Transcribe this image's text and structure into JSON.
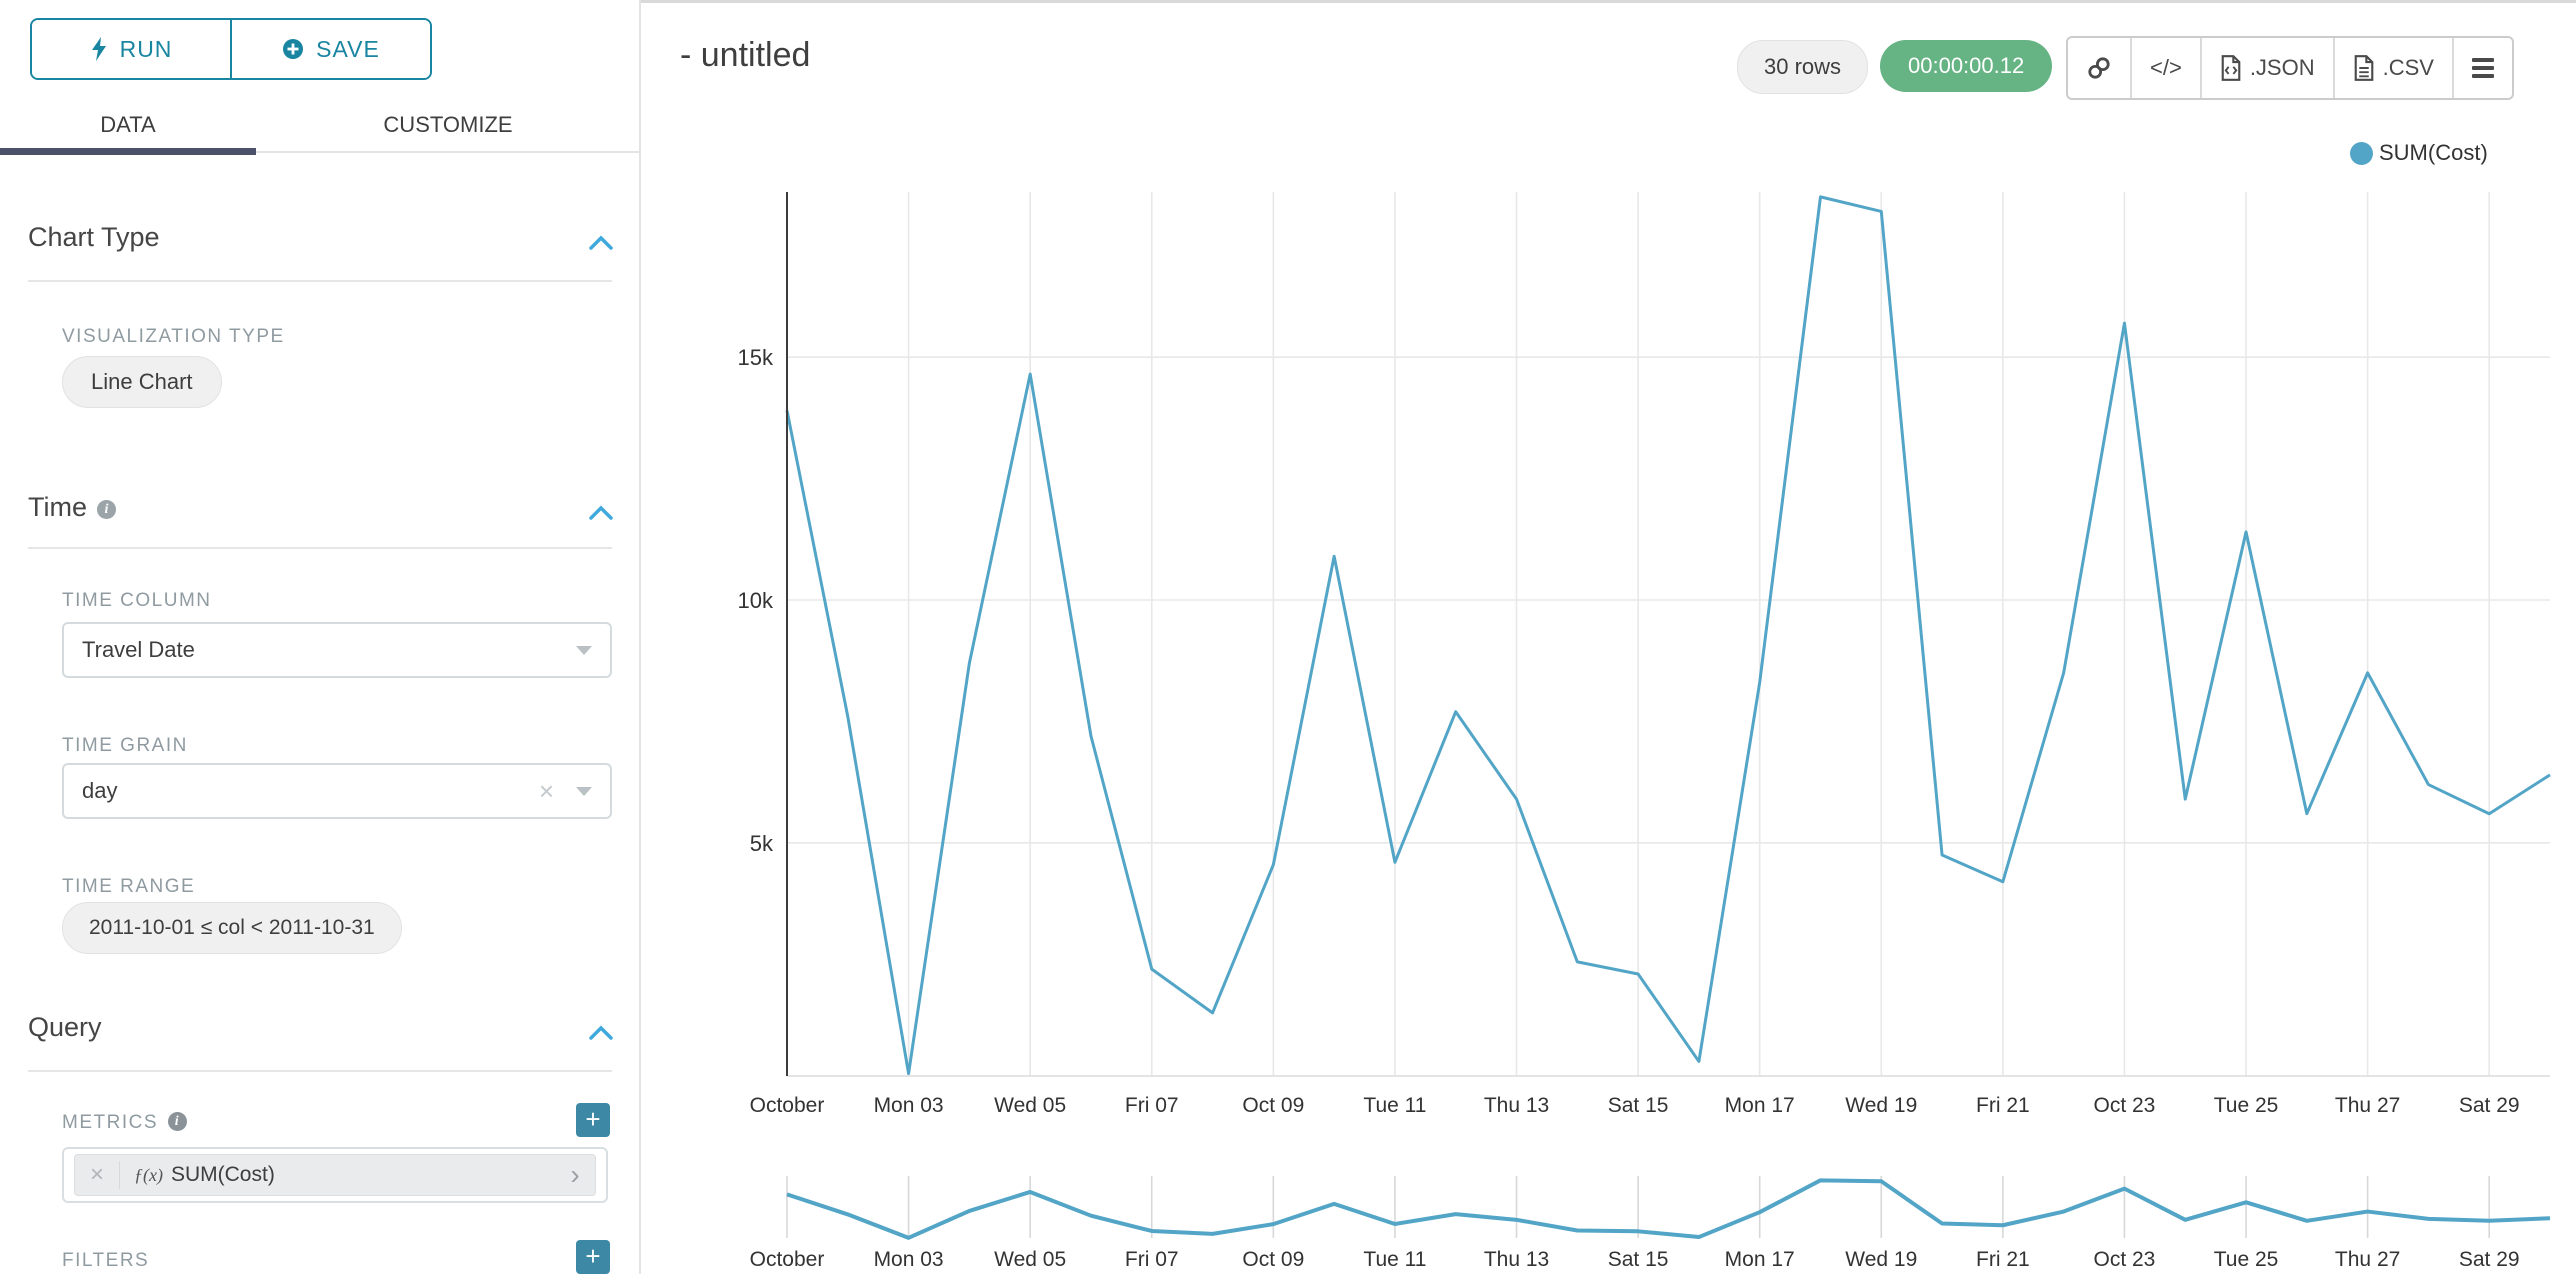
{
  "toolbar": {
    "run_label": "RUN",
    "save_label": "SAVE"
  },
  "tabs": {
    "data": "DATA",
    "customize": "CUSTOMIZE"
  },
  "sidebar": {
    "chart_type": {
      "title": "Chart Type",
      "viz_type_label": "VISUALIZATION TYPE",
      "viz_type_value": "Line Chart"
    },
    "time": {
      "title": "Time",
      "time_column_label": "TIME COLUMN",
      "time_column_value": "Travel Date",
      "time_grain_label": "TIME GRAIN",
      "time_grain_value": "day",
      "time_range_label": "TIME RANGE",
      "time_range_value": "2011-10-01 ≤ col < 2011-10-31"
    },
    "query": {
      "title": "Query",
      "metrics_label": "METRICS",
      "metric_fx": "ƒ(x)",
      "metric_name": "SUM(Cost)",
      "filters_label": "FILTERS"
    }
  },
  "header": {
    "title": "- untitled",
    "rows_badge": "30 rows",
    "timer": "00:00:00.12",
    "code_label": "</>",
    "json_label": ".JSON",
    "csv_label": ".CSV"
  },
  "chart_data": {
    "type": "line",
    "title": "",
    "xlabel": "",
    "ylabel": "",
    "legend_position": "top-right",
    "grid": true,
    "x_dates": [
      "2011-10-01",
      "2011-10-02",
      "2011-10-03",
      "2011-10-04",
      "2011-10-05",
      "2011-10-06",
      "2011-10-07",
      "2011-10-08",
      "2011-10-09",
      "2011-10-10",
      "2011-10-11",
      "2011-10-12",
      "2011-10-13",
      "2011-10-14",
      "2011-10-15",
      "2011-10-16",
      "2011-10-17",
      "2011-10-18",
      "2011-10-19",
      "2011-10-20",
      "2011-10-21",
      "2011-10-22",
      "2011-10-23",
      "2011-10-24",
      "2011-10-25",
      "2011-10-26",
      "2011-10-27",
      "2011-10-28",
      "2011-10-29",
      "2011-10-30"
    ],
    "series": [
      {
        "name": "SUM(Cost)",
        "color": "#52a5c6",
        "values": [
          13900,
          7600,
          250,
          8700,
          14650,
          7200,
          2400,
          1500,
          4550,
          10900,
          4600,
          7700,
          5900,
          2550,
          2300,
          500,
          8300,
          18300,
          18000,
          4750,
          4200,
          8500,
          15700,
          5900,
          11400,
          5600,
          8500,
          6200,
          5600,
          6400
        ]
      }
    ],
    "x_ticks": [
      {
        "day": 1,
        "label": "October"
      },
      {
        "day": 3,
        "label": "Mon 03"
      },
      {
        "day": 5,
        "label": "Wed 05"
      },
      {
        "day": 7,
        "label": "Fri 07"
      },
      {
        "day": 9,
        "label": "Oct 09"
      },
      {
        "day": 11,
        "label": "Tue 11"
      },
      {
        "day": 13,
        "label": "Thu 13"
      },
      {
        "day": 15,
        "label": "Sat 15"
      },
      {
        "day": 17,
        "label": "Mon 17"
      },
      {
        "day": 19,
        "label": "Wed 19"
      },
      {
        "day": 21,
        "label": "Fri 21"
      },
      {
        "day": 23,
        "label": "Oct 23"
      },
      {
        "day": 25,
        "label": "Tue 25"
      },
      {
        "day": 27,
        "label": "Thu 27"
      },
      {
        "day": 29,
        "label": "Sat 29"
      }
    ],
    "y_ticks": [
      {
        "value": 5000,
        "label": "5k"
      },
      {
        "value": 10000,
        "label": "10k"
      },
      {
        "value": 15000,
        "label": "15k"
      }
    ],
    "y_domain": [
      200,
      18400
    ],
    "colors": {
      "grid": "#e8e8e8",
      "axis": "#3c3c3c",
      "tick_text": "#333333",
      "mini_tick": "#d8d8d8"
    }
  }
}
